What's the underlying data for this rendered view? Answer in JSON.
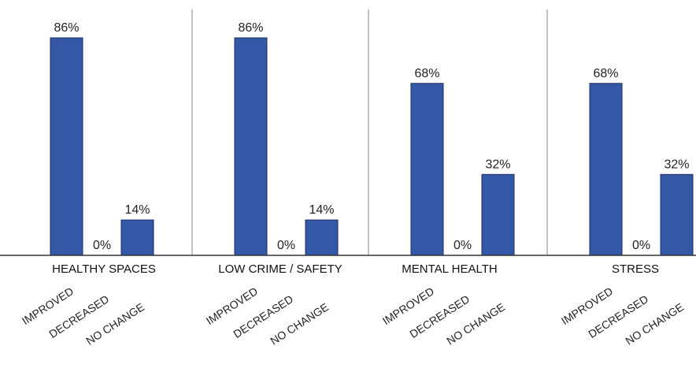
{
  "chart_data": {
    "type": "bar",
    "groups": [
      "HEALTHY SPACES",
      "LOW CRIME / SAFETY",
      "MENTAL HEALTH",
      "STRESS"
    ],
    "categories": [
      "IMPROVED",
      "DECREASED",
      "NO CHANGE"
    ],
    "values": [
      [
        86,
        0,
        14
      ],
      [
        86,
        0,
        14
      ],
      [
        68,
        0,
        32
      ],
      [
        68,
        0,
        32
      ]
    ],
    "value_labels": [
      [
        "86%",
        "0%",
        "14%"
      ],
      [
        "86%",
        "0%",
        "14%"
      ],
      [
        "68%",
        "0%",
        "32%"
      ],
      [
        "68%",
        "0%",
        "32%"
      ]
    ],
    "unit": "%",
    "ylim": [
      0,
      100
    ],
    "grid": false,
    "colors": {
      "bar": "#3457a6",
      "separator": "#999999"
    }
  }
}
